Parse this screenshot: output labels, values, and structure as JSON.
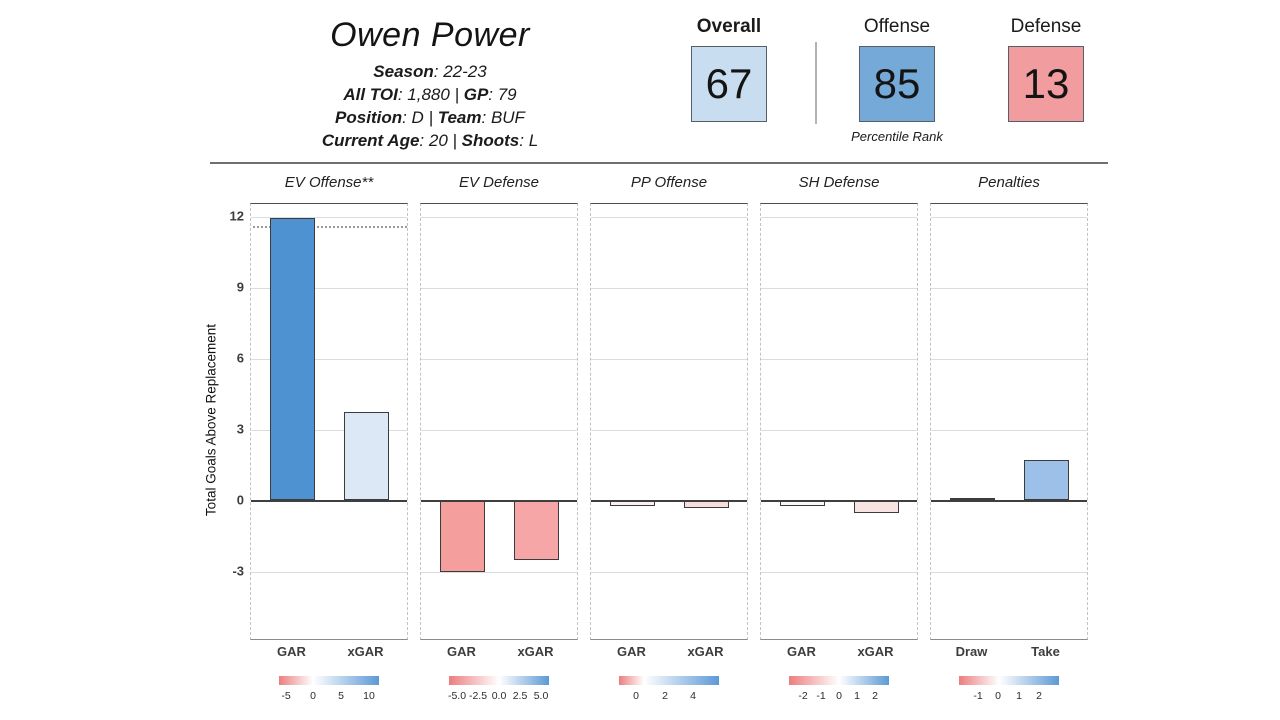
{
  "header": {
    "player_name": "Owen Power",
    "info_separator": " | ",
    "lines": [
      {
        "segments": [
          {
            "label": "Season",
            "value": "22-23"
          }
        ]
      },
      {
        "segments": [
          {
            "label": "All TOI",
            "value": "1,880"
          },
          {
            "label": "GP",
            "value": "79"
          }
        ]
      },
      {
        "segments": [
          {
            "label": "Position",
            "value": "D"
          },
          {
            "label": "Team",
            "value": "BUF"
          }
        ]
      },
      {
        "segments": [
          {
            "label": "Current Age",
            "value": "20"
          },
          {
            "label": "Shoots",
            "value": "L"
          }
        ]
      }
    ]
  },
  "percentiles": {
    "caption": "Percentile Rank",
    "boxes": [
      {
        "label": "Overall",
        "value": "67",
        "color": "#c9ddf0",
        "bold": true
      },
      {
        "label": "Offense",
        "value": "85",
        "color": "#74a9d8",
        "bold": false
      },
      {
        "label": "Defense",
        "value": "13",
        "color": "#f19c9e",
        "bold": false
      }
    ]
  },
  "chart_data": {
    "type": "bar",
    "ylabel": "Total Goals Above Replacement",
    "yticks": [
      12,
      9,
      6,
      3,
      0,
      -3
    ],
    "ylim": [
      -5.9,
      12.55
    ],
    "grid": true,
    "legend_gradient": {
      "left_color": "#ec7e7e",
      "right_color": "#5d99d6"
    },
    "panels": [
      {
        "title": "EV Offense**",
        "categories": [
          "GAR",
          "xGAR"
        ],
        "values": [
          11.9,
          3.7
        ],
        "colors": [
          "#4e92d2",
          "#dce8f6"
        ],
        "ref_line": 11.6,
        "legend": {
          "white_pos": 0.34,
          "ticks": [
            {
              "label": "-5",
              "pos": 0.07
            },
            {
              "label": "0",
              "pos": 0.34
            },
            {
              "label": "5",
              "pos": 0.62
            },
            {
              "label": "10",
              "pos": 0.9
            }
          ]
        }
      },
      {
        "title": "EV Defense",
        "categories": [
          "GAR",
          "xGAR"
        ],
        "values": [
          -3.0,
          -2.5
        ],
        "colors": [
          "#f59e9e",
          "#f6a6a6"
        ],
        "ref_line": null,
        "legend": {
          "white_pos": 0.5,
          "ticks": [
            {
              "label": "-5.0",
              "pos": 0.08
            },
            {
              "label": "-2.5",
              "pos": 0.29
            },
            {
              "label": "0.0",
              "pos": 0.5
            },
            {
              "label": "2.5",
              "pos": 0.71
            },
            {
              "label": "5.0",
              "pos": 0.92
            }
          ]
        }
      },
      {
        "title": "PP Offense",
        "categories": [
          "GAR",
          "xGAR"
        ],
        "values": [
          -0.2,
          -0.3
        ],
        "colors": [
          "#fcf0f0",
          "#f8dddd"
        ],
        "ref_line": null,
        "legend": {
          "white_pos": 0.25,
          "ticks": [
            {
              "label": "0",
              "pos": 0.17
            },
            {
              "label": "2",
              "pos": 0.46
            },
            {
              "label": "4",
              "pos": 0.74
            }
          ]
        }
      },
      {
        "title": "SH Defense",
        "categories": [
          "GAR",
          "xGAR"
        ],
        "values": [
          -0.2,
          -0.5
        ],
        "colors": [
          "#fdf8f8",
          "#f9e2e2"
        ],
        "ref_line": null,
        "legend": {
          "white_pos": 0.5,
          "ticks": [
            {
              "label": "-2",
              "pos": 0.14
            },
            {
              "label": "-1",
              "pos": 0.32
            },
            {
              "label": "0",
              "pos": 0.5
            },
            {
              "label": "1",
              "pos": 0.68
            },
            {
              "label": "2",
              "pos": 0.86
            }
          ]
        }
      },
      {
        "title": "Penalties",
        "categories": [
          "Draw",
          "Take"
        ],
        "values": [
          0.1,
          1.7
        ],
        "colors": [
          "#f5f8fb",
          "#9cc0e8"
        ],
        "ref_line": null,
        "legend": {
          "white_pos": 0.4,
          "ticks": [
            {
              "label": "-1",
              "pos": 0.19
            },
            {
              "label": "0",
              "pos": 0.39
            },
            {
              "label": "1",
              "pos": 0.6
            },
            {
              "label": "2",
              "pos": 0.8
            }
          ]
        }
      }
    ]
  }
}
